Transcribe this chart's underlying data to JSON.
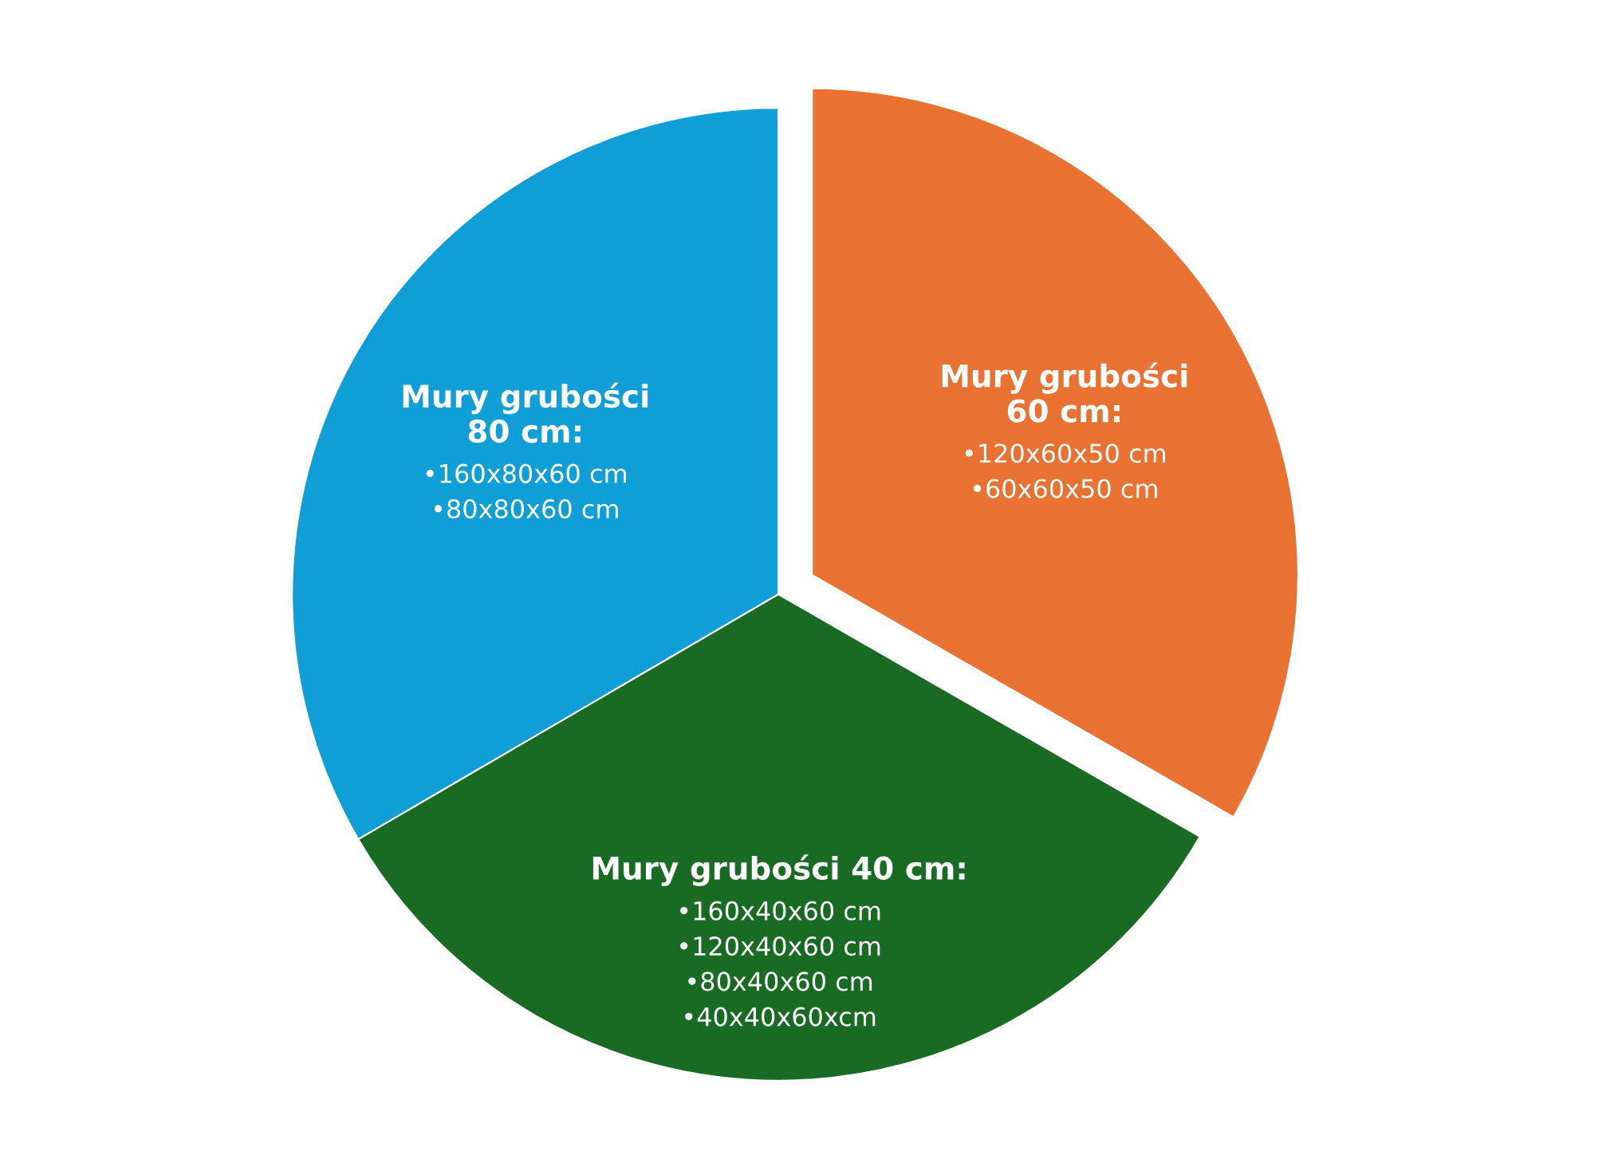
{
  "chart_data": {
    "type": "pie",
    "categories": [
      "Mury grubości\n60 cm:\n•120x60x50 cm\n•60x60x50 cm",
      "Mury grubości 40 cm:\n•160x40x60 cm\n•120x40x60 cm\n•80x40x60 cm\n•40x40x60xcm",
      "Mury grubości\n80 cm:\n•160x80x60 cm\n•80x80x60 cm"
    ],
    "values": [
      33.3,
      33.3,
      33.4
    ],
    "colors": [
      "#e97132",
      "#196b24",
      "#0f9ed5"
    ],
    "legend": false
  }
}
